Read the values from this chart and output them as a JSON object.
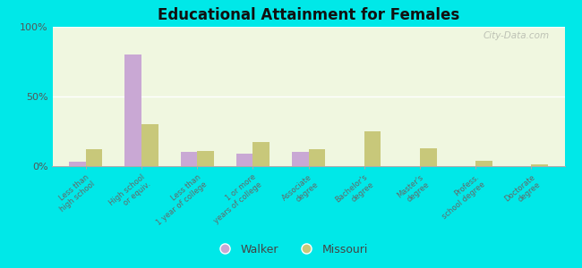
{
  "title": "Educational Attainment for Females",
  "categories": [
    "Less than\nhigh school",
    "High school\nor equiv.",
    "Less than\n1 year of college",
    "1 or more\nyears of college",
    "Associate\ndegree",
    "Bachelor's\ndegree",
    "Master's\ndegree",
    "Profess.\nschool degree",
    "Doctorate\ndegree"
  ],
  "walker_values": [
    3,
    80,
    10,
    9,
    10,
    0,
    0,
    0,
    0
  ],
  "missouri_values": [
    12,
    30,
    11,
    17,
    12,
    25,
    13,
    4,
    1
  ],
  "walker_color": "#c9a8d4",
  "missouri_color": "#c8c87a",
  "ylim": [
    0,
    100
  ],
  "yticks": [
    0,
    50,
    100
  ],
  "ytick_labels": [
    "0%",
    "50%",
    "100%"
  ],
  "bar_width": 0.3,
  "figure_bg": "#00e8e8",
  "watermark": "City-Data.com",
  "legend_walker": "Walker",
  "legend_missouri": "Missouri"
}
